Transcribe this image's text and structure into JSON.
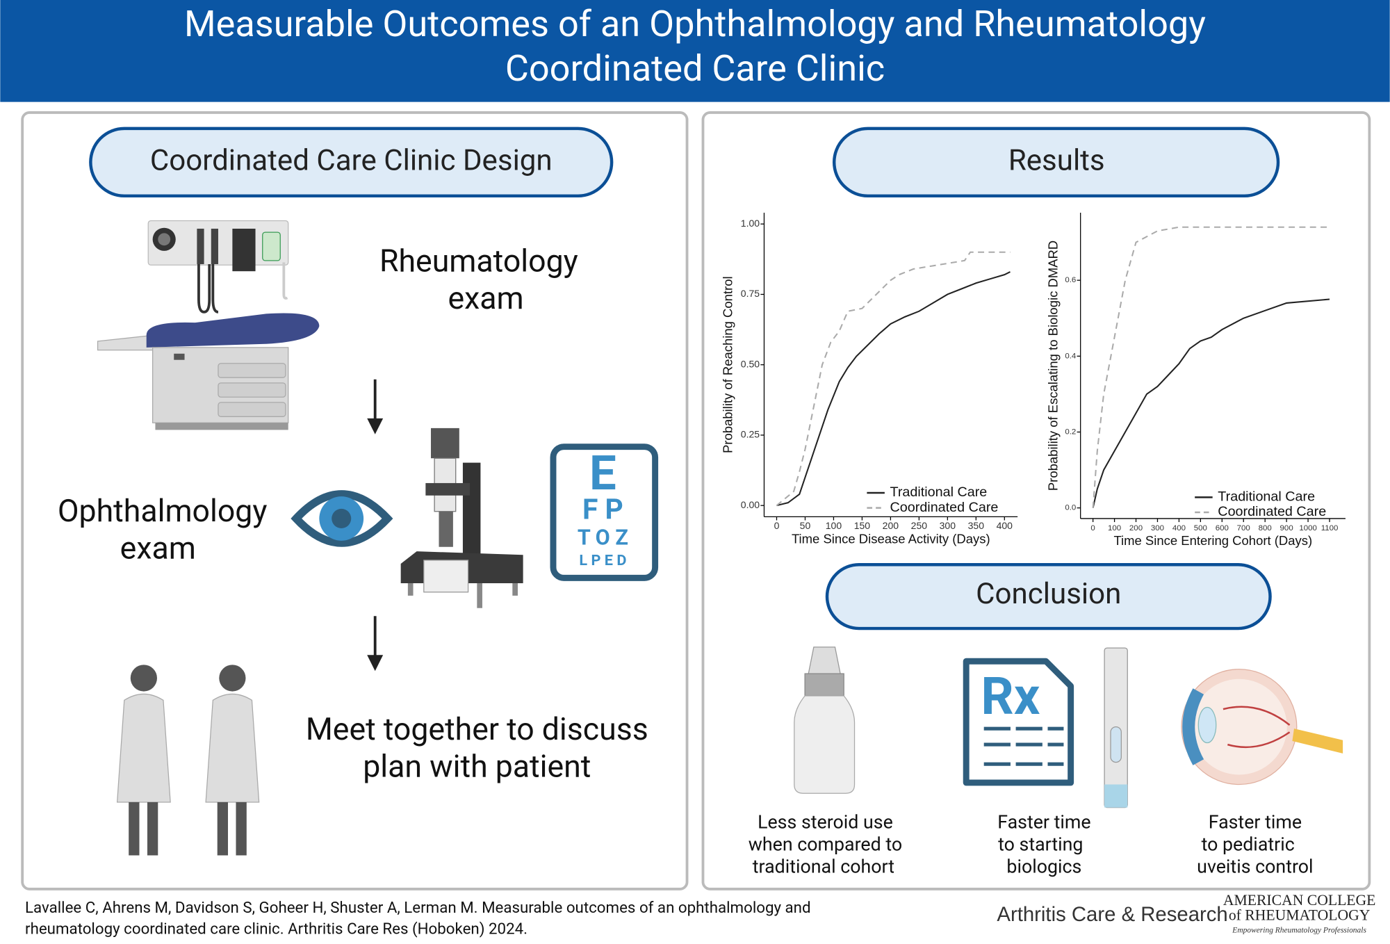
{
  "header": {
    "title": [
      "Measurable Outcomes of an Ophthalmology and Rheumatology",
      "Coordinated Care Clinic"
    ]
  },
  "design": {
    "heading": "Coordinated Care Clinic Design",
    "steps": [
      {
        "label": [
          "Rheumatology",
          "exam"
        ]
      },
      {
        "label": [
          "Ophthalmology",
          "exam"
        ]
      },
      {
        "label": [
          "Meet together to discuss",
          "plan with patient"
        ]
      }
    ],
    "eye_chart": [
      "E",
      "F P",
      "T O Z",
      "L P E D"
    ]
  },
  "results": {
    "heading": "Results"
  },
  "chart_data": [
    {
      "type": "line",
      "y_label": "Probability of Reaching Control",
      "x_label": "Time Since Disease Activity (Days)",
      "xlim": [
        -22,
        423
      ],
      "ylim": [
        -0.04,
        1.04
      ],
      "xticks": [
        0,
        50,
        100,
        150,
        200,
        250,
        300,
        350,
        400
      ],
      "yticks": [
        {
          "value": 0,
          "label": "0.00"
        },
        {
          "value": 0.25,
          "label": "0.25"
        },
        {
          "value": 0.5,
          "label": "0.50"
        },
        {
          "value": 0.75,
          "label": "0.75"
        },
        {
          "value": 1,
          "label": "1.00"
        }
      ],
      "legend": "lower right",
      "series": [
        {
          "name": "Traditional Care",
          "color": "#222222",
          "line_style": "solid",
          "x": [
            0,
            20,
            40,
            50,
            60,
            70,
            80,
            90,
            100,
            110,
            125,
            140,
            160,
            180,
            200,
            225,
            250,
            275,
            300,
            325,
            350,
            375,
            400,
            410
          ],
          "values": [
            0,
            0.01,
            0.04,
            0.1,
            0.16,
            0.22,
            0.28,
            0.34,
            0.39,
            0.44,
            0.49,
            0.53,
            0.57,
            0.61,
            0.645,
            0.67,
            0.69,
            0.72,
            0.75,
            0.77,
            0.79,
            0.805,
            0.82,
            0.83
          ]
        },
        {
          "name": "Coordinated Care",
          "color": "#aaaaaa",
          "line_style": "dashed",
          "x": [
            0,
            30,
            40,
            50,
            60,
            70,
            80,
            95,
            110,
            125,
            150,
            170,
            190,
            200,
            215,
            240,
            300,
            330,
            340,
            410
          ],
          "values": [
            0,
            0.05,
            0.12,
            0.2,
            0.3,
            0.4,
            0.5,
            0.58,
            0.62,
            0.69,
            0.7,
            0.74,
            0.78,
            0.8,
            0.82,
            0.84,
            0.86,
            0.87,
            0.9,
            0.9
          ]
        }
      ]
    },
    {
      "type": "line",
      "y_label": "Probability of Escalating to Biologic DMARD",
      "x_label": "Time Since Entering Cohort (Days)",
      "xlim": [
        -58,
        1174
      ],
      "ylim": [
        -0.028,
        0.778
      ],
      "xticks": [
        0,
        100,
        200,
        300,
        400,
        500,
        600,
        700,
        800,
        900,
        1000,
        1100
      ],
      "yticks": [
        {
          "value": 0,
          "label": "0.0"
        },
        {
          "value": 0.2,
          "label": "0.2"
        },
        {
          "value": 0.4,
          "label": "0.4"
        },
        {
          "value": 0.6,
          "label": "0.6"
        }
      ],
      "legend": "lower right",
      "series": [
        {
          "name": "Traditional Care",
          "color": "#222222",
          "line_style": "solid",
          "x": [
            0,
            20,
            50,
            100,
            150,
            200,
            250,
            300,
            350,
            400,
            450,
            500,
            550,
            600,
            700,
            800,
            900,
            1100
          ],
          "values": [
            0,
            0.05,
            0.1,
            0.15,
            0.2,
            0.25,
            0.3,
            0.32,
            0.35,
            0.38,
            0.42,
            0.44,
            0.45,
            0.47,
            0.5,
            0.52,
            0.54,
            0.55
          ]
        },
        {
          "name": "Coordinated Care",
          "color": "#aaaaaa",
          "line_style": "dashed",
          "x": [
            0,
            20,
            50,
            100,
            150,
            200,
            300,
            400,
            1100
          ],
          "values": [
            0,
            0.15,
            0.3,
            0.45,
            0.6,
            0.7,
            0.73,
            0.74,
            0.74
          ]
        }
      ]
    }
  ],
  "conclusion": {
    "heading": "Conclusion",
    "rx": "Rx",
    "items": [
      [
        "Less steroid use",
        "when compared to",
        "traditional cohort"
      ],
      [
        "Faster time",
        "to starting",
        "biologics"
      ],
      [
        "Faster time",
        "to pediatric",
        "uveitis control"
      ]
    ]
  },
  "footer": {
    "citation": [
      "Lavallee C, Ahrens M, Davidson S, Goheer H, Shuster A, Lerman M. Measurable outcomes of an ophthalmology and",
      "rheumatology coordinated care clinic.  Arthritis Care Res (Hoboken) 2024."
    ],
    "journal": "Arthritis Care & Research",
    "publisher": [
      "AMERICAN COLLEGE",
      "of RHEUMATOLOGY"
    ],
    "tagline": "Empowering Rheumatology Professionals"
  }
}
